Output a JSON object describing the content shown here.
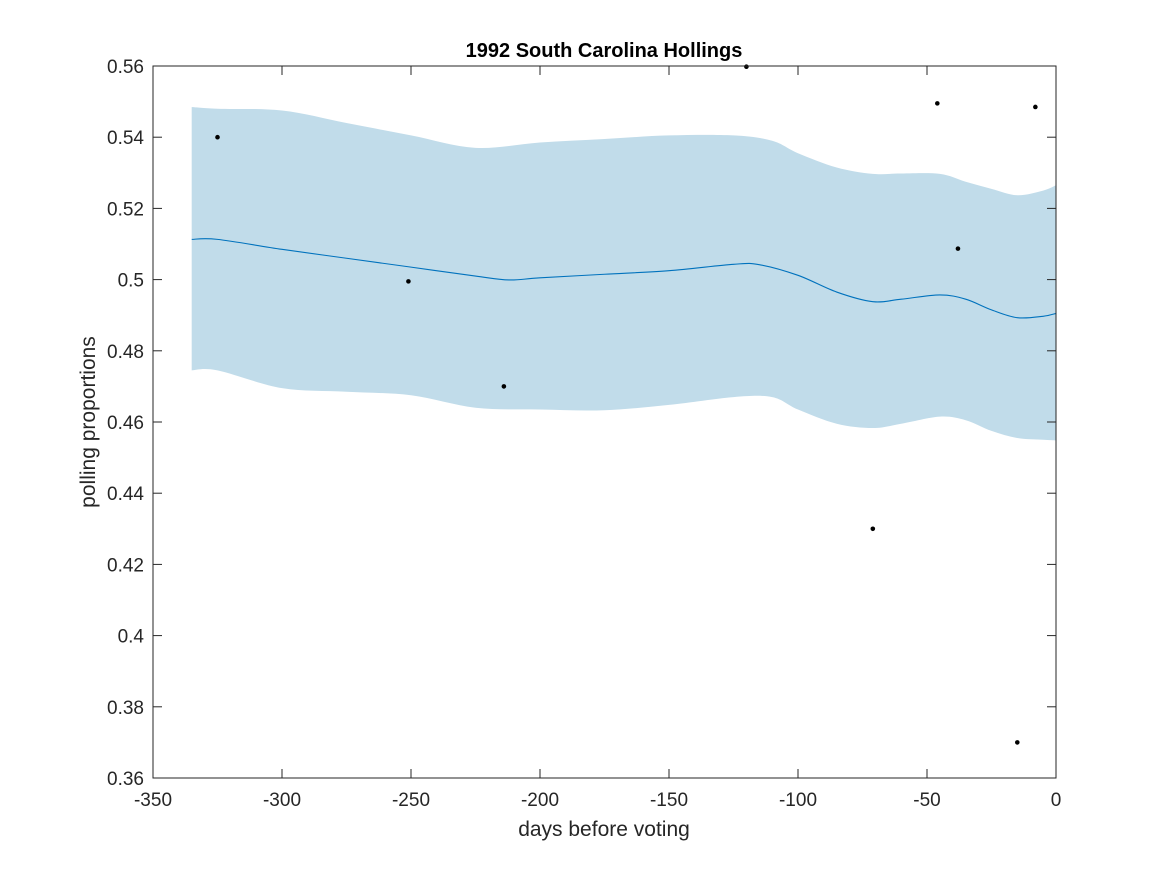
{
  "chart_data": {
    "type": "line",
    "title": "1992 South Carolina Hollings",
    "xlabel": "days before voting",
    "ylabel": "polling proportions",
    "xlim": [
      -350,
      0
    ],
    "ylim": [
      0.36,
      0.56
    ],
    "xticks": [
      -350,
      -300,
      -250,
      -200,
      -150,
      -100,
      -50,
      0
    ],
    "xtick_labels": [
      "-350",
      "-300",
      "-250",
      "-200",
      "-150",
      "-100",
      "-50",
      "0"
    ],
    "yticks": [
      0.36,
      0.38,
      0.4,
      0.42,
      0.44,
      0.46,
      0.48,
      0.5,
      0.52,
      0.54,
      0.56
    ],
    "ytick_labels": [
      "0.36",
      "0.38",
      "0.4",
      "0.42",
      "0.44",
      "0.46",
      "0.48",
      "0.5",
      "0.52",
      "0.54",
      "0.56"
    ],
    "grid": false,
    "legend": "none",
    "colors": {
      "band": "#c1dcea",
      "line": "#0072bd",
      "points": "#000000",
      "axes": "#262626"
    },
    "series": [
      {
        "type": "area-band",
        "x": [
          -335,
          -325,
          -300,
          -275,
          -250,
          -225,
          -200,
          -175,
          -150,
          -125,
          -110,
          -100,
          -85,
          -71,
          -60,
          -45,
          -35,
          -25,
          -15,
          -5,
          0
        ],
        "upper": [
          0.5485,
          0.548,
          0.5475,
          0.544,
          0.5405,
          0.537,
          0.5385,
          0.5395,
          0.5405,
          0.5405,
          0.539,
          0.5355,
          0.5315,
          0.5297,
          0.5298,
          0.5297,
          0.5275,
          0.5255,
          0.5237,
          0.525,
          0.5265
        ],
        "lower": [
          0.4745,
          0.4745,
          0.4695,
          0.4685,
          0.4675,
          0.464,
          0.4635,
          0.4633,
          0.4648,
          0.467,
          0.467,
          0.4635,
          0.4595,
          0.4583,
          0.4595,
          0.4615,
          0.4605,
          0.4575,
          0.4555,
          0.455,
          0.4548
        ]
      },
      {
        "type": "line",
        "x": [
          -335,
          -325,
          -300,
          -275,
          -250,
          -225,
          -212,
          -200,
          -175,
          -150,
          -125,
          -115,
          -100,
          -85,
          -71,
          -60,
          -45,
          -35,
          -25,
          -15,
          -5,
          0
        ],
        "y": [
          0.5113,
          0.5113,
          0.5085,
          0.506,
          0.5035,
          0.501,
          0.4999,
          0.5005,
          0.5015,
          0.5025,
          0.5043,
          0.5042,
          0.5012,
          0.4965,
          0.4938,
          0.4945,
          0.4957,
          0.4945,
          0.4915,
          0.4893,
          0.4897,
          0.4905
        ]
      },
      {
        "type": "scatter",
        "x": [
          -325,
          -251,
          -214,
          -120,
          -71,
          -46,
          -38,
          -15,
          -8
        ],
        "y": [
          0.54,
          0.4995,
          0.47,
          0.5598,
          0.43,
          0.5495,
          0.5087,
          0.37,
          0.5485
        ]
      }
    ]
  }
}
